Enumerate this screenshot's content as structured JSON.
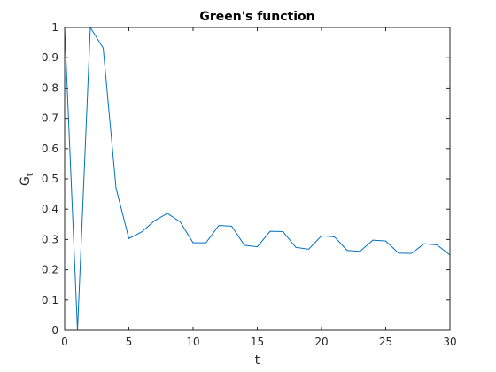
{
  "chart_data": {
    "type": "line",
    "title": "Green's function",
    "xlabel": "t",
    "ylabel": "G",
    "ylabel_subscript": "t",
    "xlim": [
      0,
      30
    ],
    "ylim": [
      0,
      1
    ],
    "xticks": [
      "0",
      "5",
      "10",
      "15",
      "20",
      "25",
      "30"
    ],
    "yticks": [
      "0",
      "0.1",
      "0.2",
      "0.3",
      "0.4",
      "0.5",
      "0.6",
      "0.7",
      "0.8",
      "0.9",
      "1"
    ],
    "grid": false,
    "legend": "none",
    "series": [
      {
        "color": "#0072bd",
        "x": [
          0,
          1,
          2,
          3,
          4,
          5,
          6,
          7,
          8,
          9,
          10,
          11,
          12,
          13,
          14,
          15,
          16,
          17,
          18,
          19,
          20,
          21,
          22,
          23,
          24,
          25,
          26,
          27,
          28,
          29,
          30
        ],
        "y": [
          1.0,
          0.0,
          1.0,
          0.932,
          0.47,
          0.303,
          0.325,
          0.362,
          0.386,
          0.358,
          0.289,
          0.289,
          0.346,
          0.344,
          0.281,
          0.276,
          0.327,
          0.326,
          0.274,
          0.268,
          0.312,
          0.309,
          0.264,
          0.261,
          0.298,
          0.295,
          0.255,
          0.254,
          0.286,
          0.282,
          0.249
        ]
      }
    ]
  }
}
